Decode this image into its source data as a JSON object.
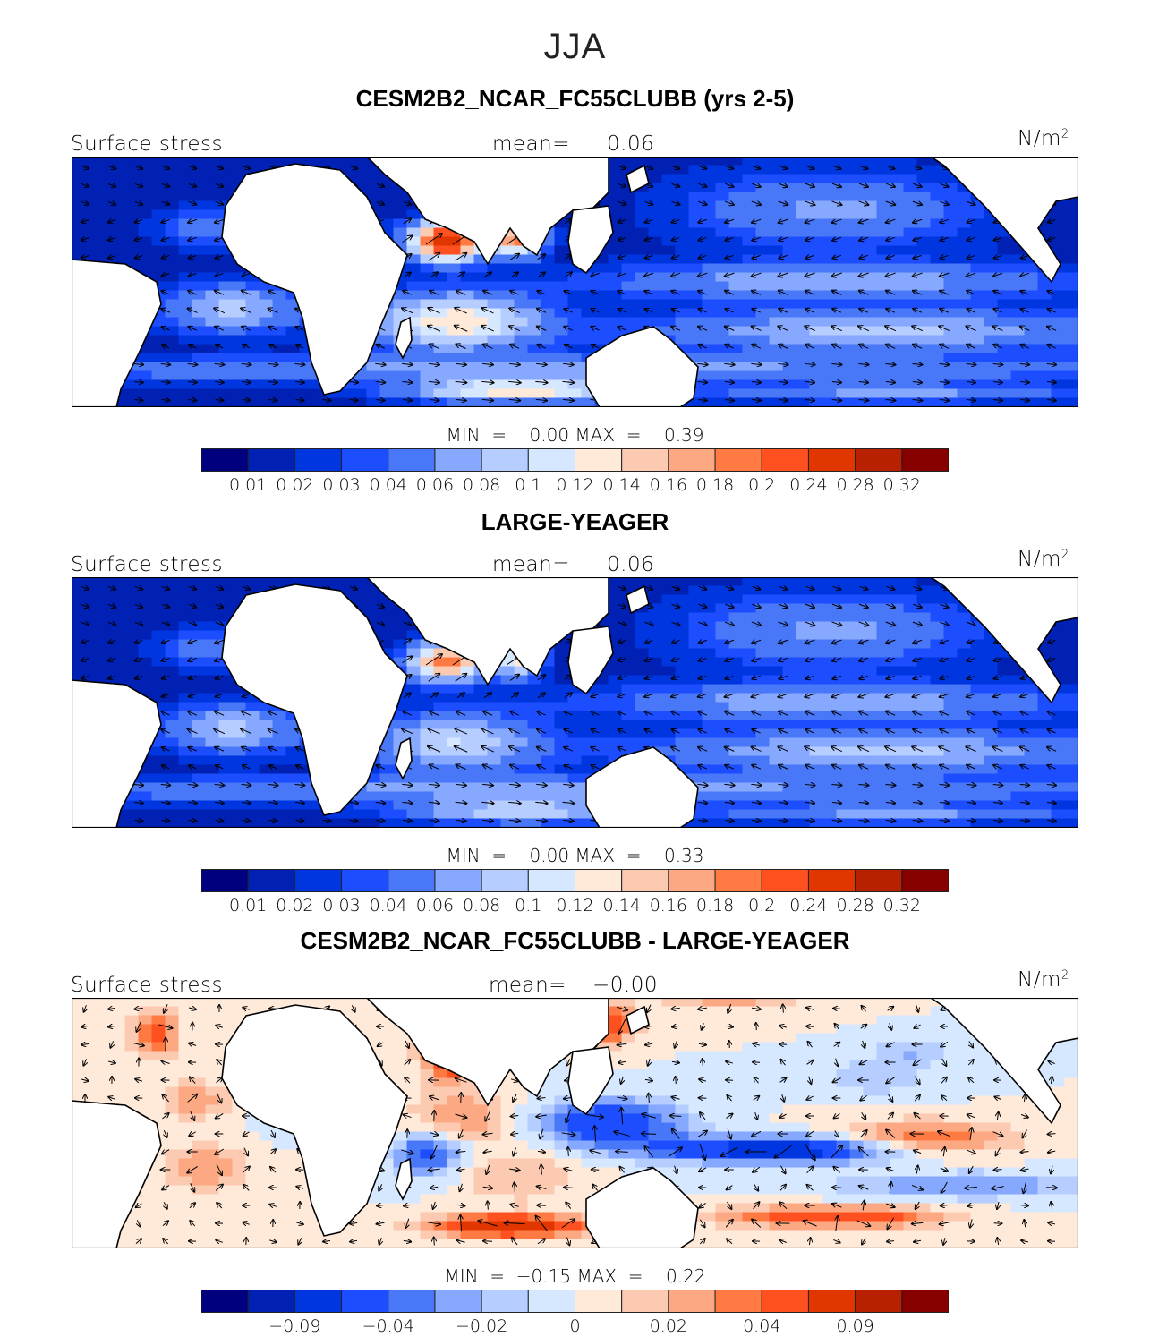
{
  "season": "JJA",
  "panels": [
    {
      "title": "CESM2B2_NCAR_FC55CLUBB (yrs 2-5)",
      "variable": "Surface stress",
      "mean_label": "mean=",
      "mean": "0.06",
      "units": "N/m",
      "units_exp": "2",
      "min_label": "MIN  =",
      "min": "0.00",
      "max_label": "MAX  =",
      "max": "0.39"
    },
    {
      "title": "LARGE-YEAGER",
      "variable": "Surface stress",
      "mean_label": "mean=",
      "mean": "0.06",
      "units": "N/m",
      "units_exp": "2",
      "min_label": "MIN  =",
      "min": "0.00",
      "max_label": "MAX  =",
      "max": "0.33"
    },
    {
      "title": "CESM2B2_NCAR_FC55CLUBB - LARGE-YEAGER",
      "variable": "Surface stress",
      "mean_label": "mean=",
      "mean": "−0.00",
      "units": "N/m",
      "units_exp": "2",
      "min_label": "MIN  =",
      "min": "−0.15",
      "max_label": "MAX  =",
      "max": "0.22"
    }
  ],
  "chart_data": {
    "type": "heatmap",
    "colors": [
      "#00007f",
      "#0021b3",
      "#0036e0",
      "#1c4dff",
      "#4877f7",
      "#86a8ff",
      "#b6cdff",
      "#d6e8ff",
      "#ffe9d9",
      "#fcc9b1",
      "#fca983",
      "#ff7a42",
      "#ff5020",
      "#e23600",
      "#b82100",
      "#860000"
    ],
    "abs_levels": [
      "0.01",
      "0.02",
      "0.03",
      "0.04",
      "0.06",
      "0.08",
      "0.1",
      "0.12",
      "0.14",
      "0.16",
      "0.18",
      "0.2",
      "0.24",
      "0.28",
      "0.32"
    ],
    "diff_level_labels": [
      "−0.09",
      "−0.04",
      "−0.02",
      "0",
      "0.02",
      "0.04",
      "0.09"
    ]
  }
}
